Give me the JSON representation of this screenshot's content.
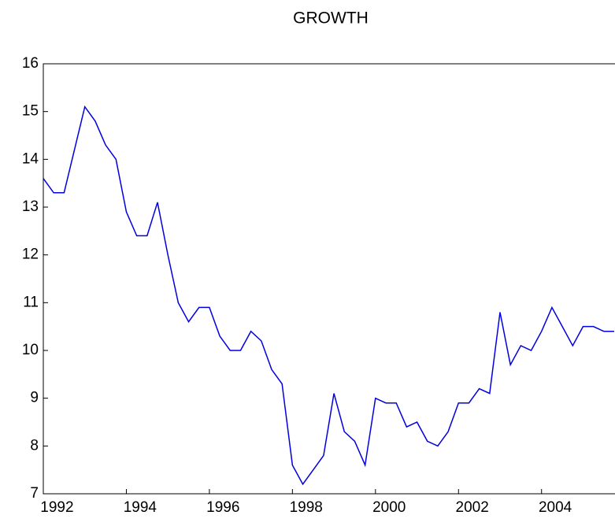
{
  "chart_data": {
    "type": "line",
    "title": "GROWTH",
    "x": [
      1992,
      1992.25,
      1992.5,
      1992.75,
      1993,
      1993.25,
      1993.5,
      1993.75,
      1994,
      1994.25,
      1994.5,
      1994.75,
      1995,
      1995.25,
      1995.5,
      1995.75,
      1996,
      1996.25,
      1996.5,
      1996.75,
      1997,
      1997.25,
      1997.5,
      1997.75,
      1998,
      1998.25,
      1998.5,
      1998.75,
      1999,
      1999.25,
      1999.5,
      1999.75,
      2000,
      2000.25,
      2000.5,
      2000.75,
      2001,
      2001.25,
      2001.5,
      2001.75,
      2002,
      2002.25,
      2002.5,
      2002.75,
      2003,
      2003.25,
      2003.5,
      2003.75,
      2004,
      2004.25,
      2004.5,
      2004.75,
      2005,
      2005.25,
      2005.5,
      2005.75
    ],
    "series": [
      {
        "color": "#0000e0",
        "values": [
          13.6,
          13.3,
          13.3,
          14.2,
          15.1,
          14.8,
          14.3,
          14.0,
          12.9,
          12.4,
          12.4,
          13.1,
          12.0,
          11.0,
          10.6,
          10.9,
          10.9,
          10.3,
          10.0,
          10.0,
          10.4,
          10.2,
          9.6,
          9.3,
          7.6,
          7.2,
          7.5,
          7.8,
          9.1,
          8.3,
          8.1,
          7.6,
          9.0,
          8.9,
          8.9,
          8.4,
          8.5,
          8.1,
          8.0,
          8.3,
          8.9,
          8.9,
          9.2,
          9.1,
          10.8,
          9.7,
          10.1,
          10.0,
          10.4,
          10.9,
          10.5,
          10.1,
          10.5,
          10.5,
          10.4,
          10.4
        ]
      }
    ],
    "xlim": [
      1992,
      2005.75
    ],
    "ylim": [
      7,
      16
    ],
    "xticks": [
      1992,
      1994,
      1996,
      1998,
      2000,
      2002,
      2004
    ],
    "yticks": [
      7,
      8,
      9,
      10,
      11,
      12,
      13,
      14,
      15,
      16
    ]
  }
}
